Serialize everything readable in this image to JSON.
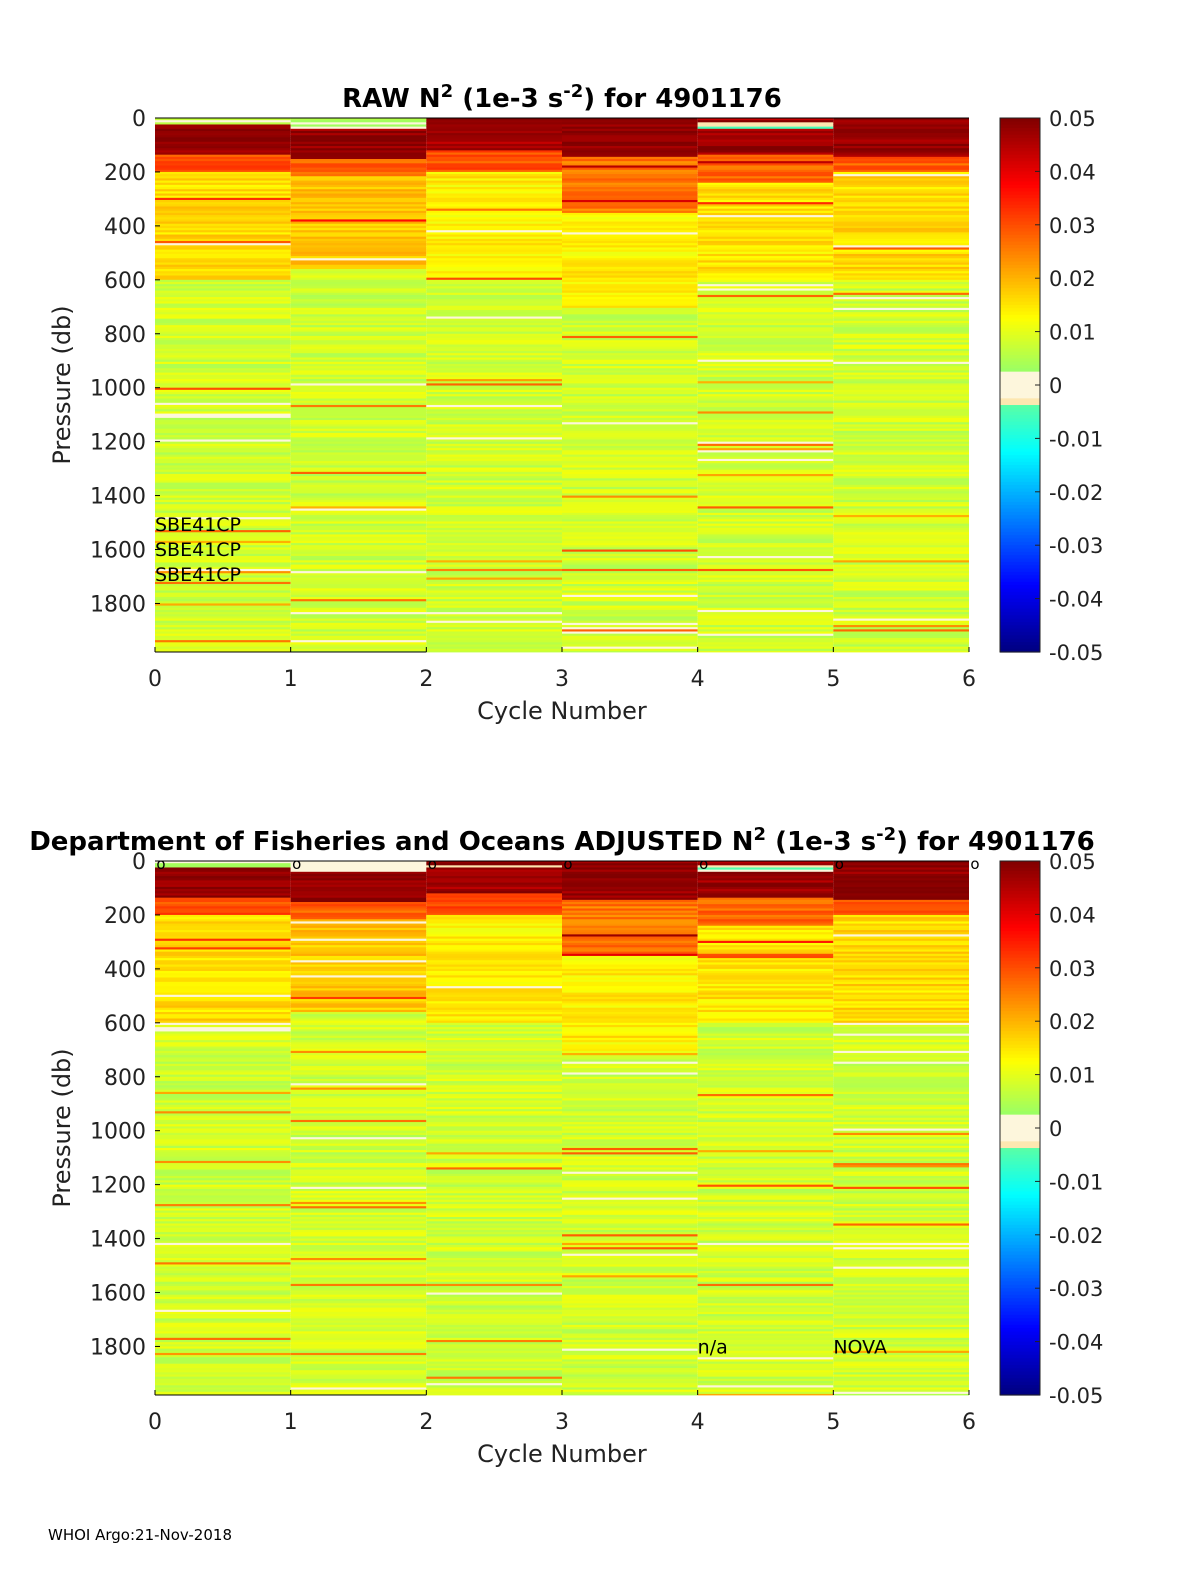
{
  "footer": {
    "text": "WHOI Argo:21-Nov-2018"
  },
  "chart_data": [
    {
      "type": "heatmap",
      "title_prefix": "RAW N",
      "title_sup1": "2",
      "title_mid": " (1e-3 s",
      "title_sup2": "-2",
      "title_suffix": ") for 4901176",
      "xlabel": "Cycle Number",
      "ylabel": "Pressure (db)",
      "xlim": [
        0,
        6
      ],
      "ylim": [
        0,
        1980
      ],
      "x_ticks": [
        "0",
        "1",
        "2",
        "3",
        "4",
        "5",
        "6"
      ],
      "y_ticks": [
        "0",
        "200",
        "400",
        "600",
        "800",
        "1000",
        "1200",
        "1400",
        "1600",
        "1800"
      ],
      "y_tick_values": [
        0,
        200,
        400,
        600,
        800,
        1000,
        1200,
        1400,
        1600,
        1800
      ],
      "colorbar": {
        "range": [
          -0.05,
          0.05
        ],
        "ticks": [
          "0.05",
          "0.04",
          "0.03",
          "0.02",
          "0.01",
          "0",
          "-0.01",
          "-0.02",
          "-0.03",
          "-0.04",
          "-0.05"
        ],
        "tick_values": [
          0.05,
          0.04,
          0.03,
          0.02,
          0.01,
          0,
          -0.01,
          -0.02,
          -0.03,
          -0.04,
          -0.05
        ]
      },
      "columns": [
        {
          "cycle": 0,
          "seed": 11,
          "bands": [
            [
              0,
              20,
              0.004
            ],
            [
              20,
              130,
              0.048
            ],
            [
              130,
              200,
              0.03
            ],
            [
              200,
              600,
              0.016
            ],
            [
              600,
              1980,
              0.008
            ]
          ]
        },
        {
          "cycle": 1,
          "seed": 23,
          "bands": [
            [
              0,
              35,
              0.002
            ],
            [
              35,
              150,
              0.048
            ],
            [
              150,
              210,
              0.028
            ],
            [
              210,
              560,
              0.018
            ],
            [
              560,
              1980,
              0.008
            ]
          ]
        },
        {
          "cycle": 2,
          "seed": 37,
          "bands": [
            [
              0,
              120,
              0.046
            ],
            [
              120,
              200,
              0.03
            ],
            [
              200,
              600,
              0.014
            ],
            [
              600,
              1980,
              0.008
            ]
          ]
        },
        {
          "cycle": 3,
          "seed": 41,
          "bands": [
            [
              0,
              140,
              0.048
            ],
            [
              140,
              350,
              0.026
            ],
            [
              350,
              700,
              0.014
            ],
            [
              700,
              1980,
              0.008
            ]
          ]
        },
        {
          "cycle": 4,
          "seed": 53,
          "bands": [
            [
              0,
              10,
              0.046
            ],
            [
              10,
              35,
              -0.003
            ],
            [
              35,
              130,
              0.047
            ],
            [
              130,
              240,
              0.028
            ],
            [
              240,
              600,
              0.015
            ],
            [
              600,
              1980,
              0.008
            ]
          ]
        },
        {
          "cycle": 5,
          "seed": 67,
          "bands": [
            [
              0,
              140,
              0.048
            ],
            [
              140,
              200,
              0.028
            ],
            [
              200,
              600,
              0.016
            ],
            [
              600,
              1980,
              0.008
            ]
          ]
        }
      ],
      "annotations": [
        {
          "text": "SBE41CP",
          "x": 0,
          "y": 1505
        },
        {
          "text": "SBE41CP",
          "x": 0,
          "y": 1598
        },
        {
          "text": "SBE41CP",
          "x": 0,
          "y": 1690
        }
      ]
    },
    {
      "type": "heatmap",
      "title_prefix": "Department of Fisheries and Oceans  ADJUSTED N",
      "title_sup1": "2",
      "title_mid": " (1e-3 s",
      "title_sup2": "-2",
      "title_suffix": ") for 4901176",
      "xlabel": "Cycle Number",
      "ylabel": "Pressure (db)",
      "xlim": [
        0,
        6
      ],
      "ylim": [
        0,
        1980
      ],
      "x_ticks": [
        "0",
        "1",
        "2",
        "3",
        "4",
        "5",
        "6"
      ],
      "y_ticks": [
        "0",
        "200",
        "400",
        "600",
        "800",
        "1000",
        "1200",
        "1400",
        "1600",
        "1800"
      ],
      "y_tick_values": [
        0,
        200,
        400,
        600,
        800,
        1000,
        1200,
        1400,
        1600,
        1800
      ],
      "colorbar": {
        "range": [
          -0.05,
          0.05
        ],
        "ticks": [
          "0.05",
          "0.04",
          "0.03",
          "0.02",
          "0.01",
          "0",
          "-0.01",
          "-0.02",
          "-0.03",
          "-0.04",
          "-0.05"
        ],
        "tick_values": [
          0.05,
          0.04,
          0.03,
          0.02,
          0.01,
          0,
          -0.01,
          -0.02,
          -0.03,
          -0.04,
          -0.05
        ]
      },
      "columns": [
        {
          "cycle": 0,
          "seed": 101,
          "bands": [
            [
              0,
              20,
              0.004
            ],
            [
              20,
              130,
              0.048
            ],
            [
              130,
              200,
              0.03
            ],
            [
              200,
              600,
              0.016
            ],
            [
              600,
              1980,
              0.008
            ]
          ]
        },
        {
          "cycle": 1,
          "seed": 113,
          "bands": [
            [
              0,
              35,
              0.002
            ],
            [
              35,
              150,
              0.048
            ],
            [
              150,
              210,
              0.028
            ],
            [
              210,
              560,
              0.018
            ],
            [
              560,
              1980,
              0.008
            ]
          ]
        },
        {
          "cycle": 2,
          "seed": 127,
          "bands": [
            [
              0,
              10,
              0.046
            ],
            [
              10,
              20,
              -0.004
            ],
            [
              20,
              120,
              0.046
            ],
            [
              120,
              200,
              0.03
            ],
            [
              200,
              600,
              0.014
            ],
            [
              600,
              1980,
              0.008
            ]
          ]
        },
        {
          "cycle": 3,
          "seed": 131,
          "bands": [
            [
              0,
              140,
              0.048
            ],
            [
              140,
              350,
              0.026
            ],
            [
              350,
              700,
              0.014
            ],
            [
              700,
              1980,
              0.008
            ]
          ]
        },
        {
          "cycle": 4,
          "seed": 149,
          "bands": [
            [
              0,
              10,
              0.046
            ],
            [
              10,
              35,
              -0.003
            ],
            [
              35,
              130,
              0.047
            ],
            [
              130,
              240,
              0.028
            ],
            [
              240,
              600,
              0.015
            ],
            [
              600,
              1980,
              0.008
            ]
          ]
        },
        {
          "cycle": 5,
          "seed": 157,
          "bands": [
            [
              0,
              140,
              0.048
            ],
            [
              140,
              200,
              0.028
            ],
            [
              200,
              600,
              0.016
            ],
            [
              600,
              1980,
              0.008
            ]
          ]
        }
      ],
      "markers": {
        "symbol": "o",
        "cycles": [
          0,
          1,
          2,
          3,
          4,
          5,
          6
        ],
        "pressure": 0
      },
      "annotations": [
        {
          "text": "n/a",
          "x": 4,
          "y": 1800
        },
        {
          "text": "NOVA",
          "x": 5,
          "y": 1800
        }
      ]
    }
  ]
}
